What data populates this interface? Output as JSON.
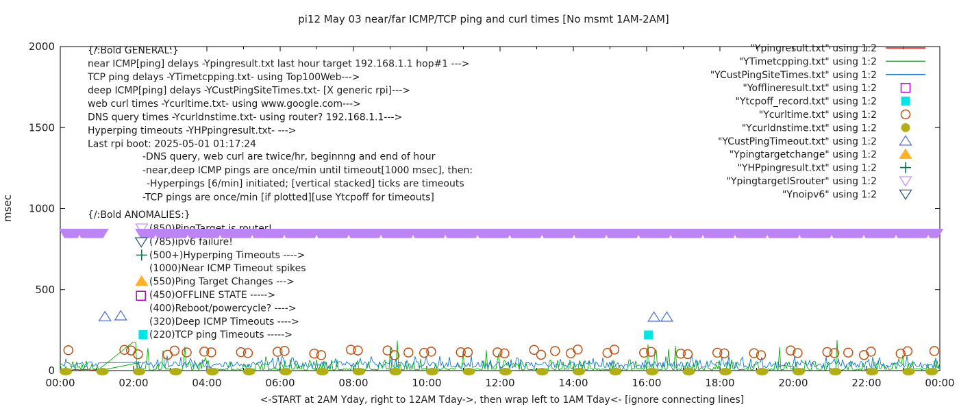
{
  "title": "pi12 May 03  near/far ICMP/TCP ping and curl times [No msmt 1AM-2AM]",
  "y_axis": {
    "label": "msec",
    "ticks": [
      0,
      500,
      1000,
      1500,
      2000
    ],
    "range": [
      0,
      2000
    ]
  },
  "x_axis": {
    "labels": [
      "00:00",
      "02:00",
      "04:00",
      "06:00",
      "08:00",
      "10:00",
      "12:00",
      "14:00",
      "16:00",
      "18:00",
      "20:00",
      "22:00",
      "00:00"
    ],
    "caption": "<-START at 2AM Yday, right to 12AM Tday->, then wrap left to 1AM Tday<- [ignore connecting lines]"
  },
  "legend": [
    {
      "label": "\"Ypingresult.txt\" using 1:2",
      "marker": "line",
      "color": "#ff0000"
    },
    {
      "label": "\"YTimetcpping.txt\" using 1:2",
      "marker": "line",
      "color": "#00b000"
    },
    {
      "label": "\"YCustPingSiteTimes.txt\" using 1:2",
      "marker": "line",
      "color": "#0d77d9"
    },
    {
      "label": "\"Yofflineresult.txt\" using 1:2",
      "marker": "square-open",
      "color": "#b100d4"
    },
    {
      "label": "\"Ytcpoff_record.txt\" using 1:2",
      "marker": "square-filled",
      "color": "#00e6e6"
    },
    {
      "label": "\"Ycurltime.txt\" using 1:2",
      "marker": "circle-open",
      "color": "#c05010"
    },
    {
      "label": "\"Ycurldnstime.txt\" using 1:2",
      "marker": "circle-filled",
      "color": "#b2af14"
    },
    {
      "label": "\"YCustPingTimeout.txt\" using 1:2",
      "marker": "triangle-up-open",
      "color": "#4f74d1"
    },
    {
      "label": "\"Ypingtargetchange\" using 1:2",
      "marker": "triangle-up-filled",
      "color": "#ffb125"
    },
    {
      "label": "\"YHPpingresult.txt\" using 1:2",
      "marker": "plus",
      "color": "#156f4b"
    },
    {
      "label": "\"YpingtargetISrouter\" using 1:2",
      "marker": "triangle-down-open",
      "color": "#c493f5"
    },
    {
      "label": "\"Ynoipv6\" using 1:2",
      "marker": "triangle-down-open",
      "color": "#2d5f7a"
    }
  ],
  "annotations": {
    "general_header": "{/:Bold GENERAL:}",
    "general": [
      "near ICMP[ping] delays -Ypingresult.txt last hour target 192.168.1.1 hop#1 --->",
      "TCP ping delays -YTimetcpping.txt- using Top100Web--->",
      "deep ICMP[ping] delays -YCustPingSiteTimes.txt- [X generic rpi]--->",
      "web curl times -Ycurltime.txt- using www.google.com--->",
      "DNS query times -Ycurldnstime.txt- using router? 192.168.1.1--->",
      "Hyperping timeouts -YHPpingresult.txt- --->",
      "Last rpi boot: 2025-05-01 01:17:24"
    ],
    "general_indented": [
      "-DNS query, web curl are twice/hr, beginnng and end of hour",
      "-near,deep ICMP pings are once/min until timeout[1000 msec], then:",
      "-Hyperpings [6/min] initiated; [vertical stacked] ticks are timeouts",
      "-TCP pings are once/min [if plotted][use Ytcpoff for timeouts]"
    ],
    "anomalies_header": "{/:Bold ANOMALIES:}",
    "anomalies": [
      "(850)PingTarget is router!",
      "(785)ipv6 failure!",
      "(500+)Hyperping Timeouts ---->",
      "(1000)Near ICMP Timeout spikes",
      "(550)Ping Target Changes --->",
      "(450)OFFLINE STATE ----->",
      "(400)Reboot/powercycle? ---->",
      "(320)Deep ICMP Timeouts ---->",
      "(220)TCP ping Timeouts ----->"
    ]
  },
  "chart_data": {
    "type": "line",
    "title": "pi12 May 03  near/far ICMP/TCP ping and curl times [No msmt 1AM-2AM]",
    "xlabel": "<-START at 2AM Yday, right to 12AM Tday->, then wrap left to 1AM Tday<- [ignore connecting lines]",
    "ylabel": "msec",
    "x_range_hours": [
      0,
      24
    ],
    "ylim": [
      0,
      2000
    ],
    "y_ticks": [
      0,
      500,
      1000,
      1500,
      2000
    ],
    "grid": false,
    "legend_position": "top-right",
    "series": [
      {
        "name": "Ypingresult.txt",
        "kind": "noise-line",
        "color": "#ff0000",
        "hours": [
          0,
          1.0
        ],
        "base_msec": [
          2,
          9
        ],
        "seed": 11
      },
      {
        "name": "YTimetcpping.txt",
        "kind": "noise-line",
        "color": "#00b000",
        "hours": [
          0,
          24
        ],
        "gap_hours": [
          1.07,
          1.95
        ],
        "base_msec": [
          2,
          14
        ],
        "mid_spike_msec": [
          15,
          60
        ],
        "mid_spike_prob": 0.3,
        "big_spike_msec": [
          70,
          200
        ],
        "big_spike_prob": 0.035,
        "forced_spikes": [
          {
            "hour": 2.02,
            "msec": 175
          },
          {
            "hour": 16.25,
            "msec": 125
          }
        ],
        "seed": 22
      },
      {
        "name": "YCustPingSiteTimes.txt",
        "kind": "noise-line",
        "color": "#0d77d9",
        "hours": [
          0,
          24
        ],
        "gap_hours": [
          1.07,
          1.95
        ],
        "base_msec": [
          16,
          56
        ],
        "big_spike_msec": [
          60,
          92
        ],
        "big_spike_prob": 0.07,
        "seed": 33
      },
      {
        "name": "Ycurltime.txt",
        "kind": "points",
        "marker": "circle-open",
        "color": "#c05010",
        "msec_range": [
          95,
          130
        ],
        "hourly_pairs": {
          "from": 2,
          "to": 23,
          "offsets": [
            -0.07,
            0.12
          ]
        },
        "single_hours": [
          0.22,
          1.75,
          3.45,
          9.5,
          13.5,
          21.5,
          23.85
        ],
        "seed": 44
      },
      {
        "name": "Ycurldnstime.txt",
        "kind": "blobs",
        "marker": "circle-filled",
        "color": "#b2af14",
        "msec": 5,
        "hours_every": 1,
        "hour_offset": 0.15
      },
      {
        "name": "YCustPingTimeout.txt",
        "kind": "points",
        "marker": "triangle-up-open",
        "color": "#4f74d1",
        "points": [
          [
            1.22,
            333
          ],
          [
            1.65,
            338
          ],
          [
            16.2,
            330
          ],
          [
            16.55,
            330
          ]
        ]
      },
      {
        "name": "Ytcpoff_record.txt",
        "kind": "points",
        "marker": "square-filled",
        "color": "#00e6e6",
        "points": [
          [
            2.26,
            222
          ],
          [
            16.05,
            220
          ]
        ]
      },
      {
        "name": "Yofflineresult.txt",
        "kind": "points",
        "marker": "square-open",
        "color": "#b100d4",
        "points": [
          [
            2.2,
            462
          ]
        ]
      },
      {
        "name": "Ypingtargetchange",
        "kind": "points",
        "marker": "triangle-up-filled",
        "color": "#ffb125",
        "points": [
          [
            2.22,
            552
          ]
        ]
      },
      {
        "name": "YHPpingresult.txt",
        "kind": "points",
        "marker": "plus",
        "color": "#156f4b",
        "points": [
          [
            2.22,
            713
          ]
        ]
      },
      {
        "name": "Ynoipv6",
        "kind": "points",
        "marker": "triangle-down-open",
        "color": "#2d5f7a",
        "points": [
          [
            2.21,
            795
          ]
        ]
      },
      {
        "name": "YpingtargetISrouter",
        "kind": "band",
        "marker": "triangle-down-open",
        "color": "#bc84f4",
        "outline_color": "#c493f5",
        "msec": 850,
        "segments_hours": [
          [
            -0.04,
            1.32
          ],
          [
            2.04,
            24.1
          ]
        ],
        "label_point": [
          2.22,
          850
        ]
      }
    ]
  }
}
